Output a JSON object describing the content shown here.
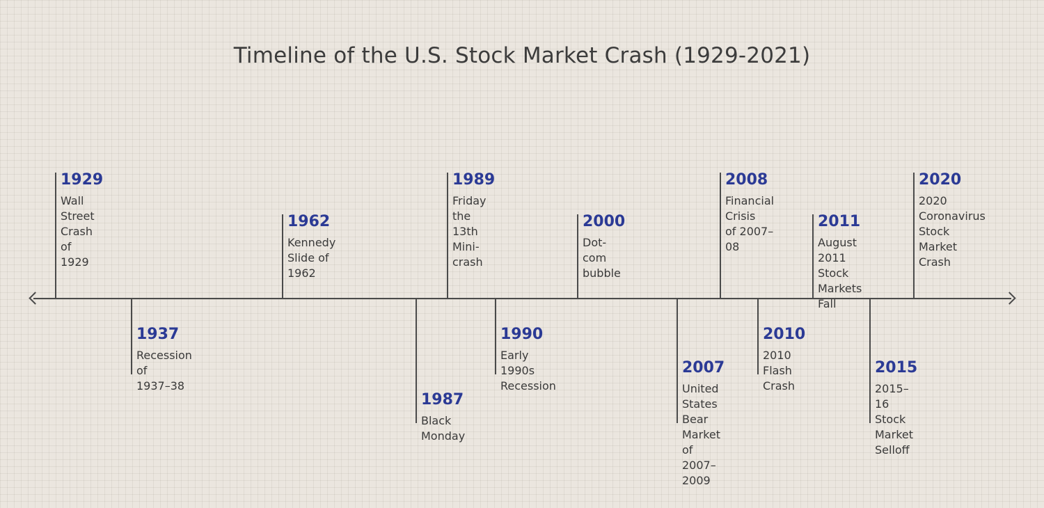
{
  "title": "Timeline of the U.S. Stock Market Crash (1929-2021)",
  "events": [
    {
      "year": "1929",
      "label": "Wall Street\nCrash of 1929"
    },
    {
      "year": "1937",
      "label": "Recession of\n1937–38"
    },
    {
      "year": "1962",
      "label": "Kennedy\nSlide of 1962"
    },
    {
      "year": "1987",
      "label": "Black Monday"
    },
    {
      "year": "1989",
      "label": "Friday the 13th\nMini-crash"
    },
    {
      "year": "1990",
      "label": "Early 1990s\nRecession"
    },
    {
      "year": "2000",
      "label": "Dot-com\nbubble"
    },
    {
      "year": "2007",
      "label": "United States\nBear Market of\n2007–2009"
    },
    {
      "year": "2008",
      "label": "Financial Crisis\nof 2007–08"
    },
    {
      "year": "2010",
      "label": "2010 Flash\nCrash"
    },
    {
      "year": "2011",
      "label": "August 2011\nStock Markets\nFall"
    },
    {
      "year": "2015",
      "label": "2015–16\nStock Market\nSelloff"
    },
    {
      "year": "2020",
      "label": "2020\nCoronavirus\nStock Market\nCrash"
    }
  ]
}
